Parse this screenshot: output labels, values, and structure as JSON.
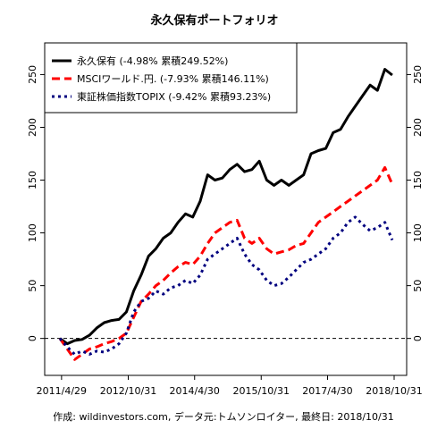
{
  "chart_data": {
    "type": "line",
    "title": "永久保有ポートフォリオ",
    "caption": "作成: wildinvestors.com, データ元:トムソンロイター, 最終日: 2018/10/31",
    "xlabel": "",
    "ylabel": "",
    "x_range": [
      "2011/3/31",
      "2018/10/31"
    ],
    "ylim": [
      -35,
      280
    ],
    "y_ticks": [
      0,
      50,
      100,
      150,
      200,
      250
    ],
    "x_ticks": [
      {
        "label": "2011/4/29",
        "date": "2011/4/29"
      },
      {
        "label": "2012/10/31",
        "date": "2012/10/31"
      },
      {
        "label": "2014/4/30",
        "date": "2014/4/30"
      },
      {
        "label": "2015/10/31",
        "date": "2015/10/31"
      },
      {
        "label": "2017/4/30",
        "date": "2017/4/30"
      },
      {
        "label": "2018/10/31",
        "date": "2018/10/31"
      }
    ],
    "reference_line": {
      "y": 0,
      "style": "dashed"
    },
    "legend_position": "top-left",
    "x": [
      "2011/4",
      "2011/6",
      "2011/8",
      "2011/10",
      "2011/12",
      "2012/2",
      "2012/4",
      "2012/6",
      "2012/8",
      "2012/10",
      "2012/12",
      "2013/2",
      "2013/4",
      "2013/6",
      "2013/8",
      "2013/10",
      "2013/12",
      "2014/2",
      "2014/4",
      "2014/6",
      "2014/8",
      "2014/10",
      "2014/12",
      "2015/2",
      "2015/4",
      "2015/6",
      "2015/8",
      "2015/10",
      "2015/12",
      "2016/2",
      "2016/4",
      "2016/6",
      "2016/8",
      "2016/10",
      "2016/12",
      "2017/2",
      "2017/4",
      "2017/6",
      "2017/8",
      "2017/10",
      "2017/12",
      "2018/2",
      "2018/4",
      "2018/6",
      "2018/8",
      "2018/10"
    ],
    "series": [
      {
        "name": "永久保有 (-4.98% 累積249.52%)",
        "color": "#000000",
        "style": "solid",
        "values": [
          0,
          -5,
          -2,
          -1,
          3,
          10,
          15,
          17,
          18,
          25,
          45,
          60,
          78,
          85,
          95,
          100,
          110,
          118,
          115,
          130,
          155,
          150,
          152,
          160,
          165,
          158,
          160,
          168,
          150,
          145,
          150,
          145,
          150,
          155,
          175,
          178,
          180,
          195,
          198,
          210,
          220,
          230,
          240,
          235,
          255,
          249.5
        ]
      },
      {
        "name": "MSCIワールド.円. (-7.93% 累積146.11%)",
        "color": "#ff0000",
        "style": "dashed",
        "values": [
          0,
          -10,
          -20,
          -15,
          -10,
          -8,
          -5,
          -3,
          0,
          5,
          20,
          35,
          42,
          50,
          55,
          62,
          68,
          72,
          70,
          78,
          90,
          100,
          105,
          110,
          112,
          95,
          90,
          95,
          85,
          80,
          82,
          84,
          88,
          90,
          100,
          110,
          115,
          120,
          125,
          130,
          135,
          140,
          145,
          150,
          162,
          146.1
        ]
      },
      {
        "name": "東証株価指数TOPIX (-9.42% 累積93.23%)",
        "color": "#00007f",
        "style": "dotted",
        "values": [
          0,
          -8,
          -15,
          -12,
          -15,
          -12,
          -13,
          -10,
          -5,
          5,
          25,
          35,
          38,
          45,
          42,
          48,
          50,
          55,
          52,
          60,
          75,
          80,
          85,
          90,
          95,
          80,
          70,
          65,
          55,
          50,
          52,
          58,
          65,
          72,
          75,
          80,
          85,
          95,
          100,
          110,
          115,
          108,
          102,
          105,
          110,
          93.2
        ]
      }
    ]
  }
}
